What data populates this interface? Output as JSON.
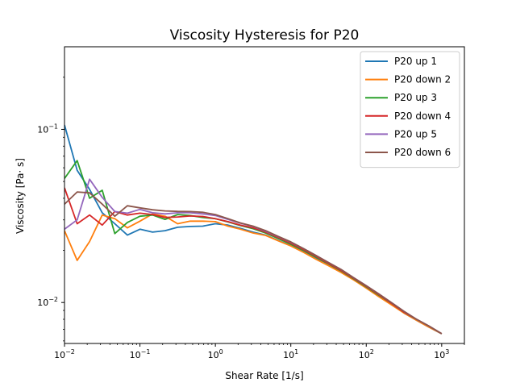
{
  "chart_data": {
    "type": "line",
    "title": "Viscosity Hysteresis for P20",
    "xlabel": "Shear Rate [1/s]",
    "ylabel": "Viscosity [Pa· s]",
    "xscale": "log",
    "yscale": "log",
    "xlim": [
      0.01,
      2000
    ],
    "ylim": [
      0.0058,
      0.3
    ],
    "x_ticks": [
      {
        "value": 0.01,
        "base": "10",
        "exp": "−2"
      },
      {
        "value": 0.1,
        "base": "10",
        "exp": "−1"
      },
      {
        "value": 1,
        "base": "10",
        "exp": "0"
      },
      {
        "value": 10,
        "base": "10",
        "exp": "1"
      },
      {
        "value": 100,
        "base": "10",
        "exp": "2"
      },
      {
        "value": 1000,
        "base": "10",
        "exp": "3"
      }
    ],
    "y_ticks": [
      {
        "value": 0.01,
        "base": "10",
        "exp": "−2"
      },
      {
        "value": 0.1,
        "base": "10",
        "exp": "−1"
      }
    ],
    "legend_position": "top-right",
    "grid": false,
    "x": [
      0.01,
      0.0147,
      0.0215,
      0.0316,
      0.0464,
      0.0681,
      0.1,
      0.147,
      0.215,
      0.316,
      0.464,
      0.681,
      1,
      1.47,
      2.15,
      3.16,
      4.64,
      6.81,
      10,
      14.7,
      21.5,
      31.6,
      46.4,
      68.1,
      100,
      147,
      215,
      316,
      464,
      681,
      1000
    ],
    "series": [
      {
        "name": "P20 up 1",
        "color": "#1f77b4",
        "values": [
          0.106,
          0.058,
          0.045,
          0.033,
          0.0285,
          0.0245,
          0.0265,
          0.0255,
          0.026,
          0.0272,
          0.0275,
          0.0276,
          0.0285,
          0.028,
          0.0268,
          0.0255,
          0.0245,
          0.0228,
          0.0213,
          0.0197,
          0.0181,
          0.0167,
          0.0151,
          0.0136,
          0.0122,
          0.011,
          0.0098,
          0.0087,
          0.0079,
          0.0072,
          0.0066
        ]
      },
      {
        "name": "P20 down 2",
        "color": "#ff7f0e",
        "values": [
          0.026,
          0.0175,
          0.0225,
          0.032,
          0.0305,
          0.027,
          0.0295,
          0.0325,
          0.0315,
          0.0285,
          0.0295,
          0.0295,
          0.0293,
          0.0276,
          0.0265,
          0.0252,
          0.0244,
          0.0227,
          0.0212,
          0.0195,
          0.0178,
          0.0163,
          0.0149,
          0.0135,
          0.0121,
          0.0108,
          0.0097,
          0.0087,
          0.0079,
          0.0072,
          0.0066
        ]
      },
      {
        "name": "P20 up 3",
        "color": "#2ca02c",
        "values": [
          0.052,
          0.066,
          0.04,
          0.0445,
          0.025,
          0.029,
          0.0315,
          0.032,
          0.0302,
          0.0322,
          0.0318,
          0.031,
          0.0305,
          0.0292,
          0.0278,
          0.0267,
          0.0252,
          0.0234,
          0.0217,
          0.02,
          0.0183,
          0.0167,
          0.0152,
          0.0137,
          0.0123,
          0.011,
          0.0099,
          0.0088,
          0.008,
          0.0073,
          0.0066
        ]
      },
      {
        "name": "P20 down 4",
        "color": "#d62728",
        "values": [
          0.046,
          0.0285,
          0.032,
          0.028,
          0.0335,
          0.032,
          0.0328,
          0.0322,
          0.031,
          0.0312,
          0.0316,
          0.0314,
          0.0305,
          0.0293,
          0.028,
          0.027,
          0.0255,
          0.0237,
          0.022,
          0.0202,
          0.0185,
          0.0168,
          0.0153,
          0.0138,
          0.0124,
          0.0111,
          0.0099,
          0.0088,
          0.008,
          0.0073,
          0.0066
        ]
      },
      {
        "name": "P20 up 5",
        "color": "#9467bd",
        "values": [
          0.0265,
          0.03,
          0.0515,
          0.0405,
          0.0335,
          0.0328,
          0.0345,
          0.033,
          0.0325,
          0.033,
          0.033,
          0.0325,
          0.0318,
          0.0302,
          0.0287,
          0.0275,
          0.0258,
          0.024,
          0.0223,
          0.0205,
          0.0187,
          0.017,
          0.0155,
          0.0139,
          0.0125,
          0.0112,
          0.01,
          0.0089,
          0.008,
          0.0073,
          0.0066
        ]
      },
      {
        "name": "P20 down 6",
        "color": "#8c564b",
        "values": [
          0.037,
          0.0435,
          0.043,
          0.037,
          0.0315,
          0.0362,
          0.0352,
          0.0343,
          0.0338,
          0.0336,
          0.0335,
          0.0332,
          0.0322,
          0.0305,
          0.0288,
          0.0276,
          0.026,
          0.0241,
          0.0224,
          0.0205,
          0.0187,
          0.017,
          0.0155,
          0.0139,
          0.0125,
          0.0112,
          0.01,
          0.0089,
          0.008,
          0.0073,
          0.0066
        ]
      }
    ]
  }
}
